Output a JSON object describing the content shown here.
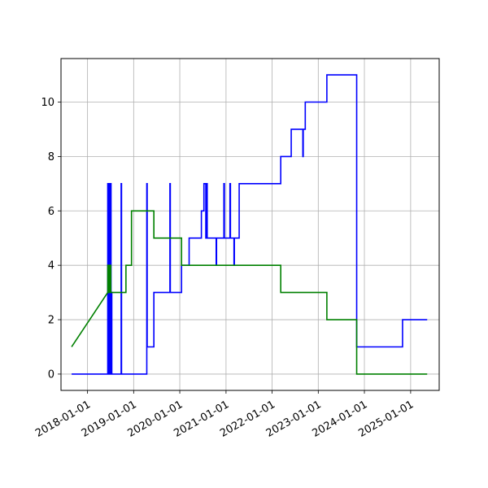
{
  "chart_data": {
    "type": "line",
    "grid": true,
    "x_type": "date",
    "xlim": [
      "2017-06-05",
      "2025-08-15"
    ],
    "ylim": [
      -0.6,
      11.6
    ],
    "x_ticks": [
      "2018-01-01",
      "2019-01-01",
      "2020-01-01",
      "2021-01-01",
      "2022-01-01",
      "2023-01-01",
      "2024-01-01",
      "2025-01-01"
    ],
    "y_ticks": [
      0,
      2,
      4,
      6,
      8,
      10
    ],
    "series": [
      {
        "color": "#0000ff",
        "step": true,
        "points": [
          [
            "2017-08-28",
            0
          ],
          [
            "2018-06-10",
            0
          ],
          [
            "2018-06-10",
            7
          ],
          [
            "2018-06-14",
            7
          ],
          [
            "2018-06-14",
            0
          ],
          [
            "2018-06-22",
            0
          ],
          [
            "2018-06-22",
            7
          ],
          [
            "2018-06-26",
            7
          ],
          [
            "2018-06-26",
            0
          ],
          [
            "2018-07-02",
            0
          ],
          [
            "2018-07-02",
            7
          ],
          [
            "2018-07-06",
            7
          ],
          [
            "2018-07-06",
            3
          ],
          [
            "2018-07-12",
            3
          ],
          [
            "2018-07-12",
            0
          ],
          [
            "2018-09-24",
            0
          ],
          [
            "2018-09-24",
            7
          ],
          [
            "2018-09-27",
            7
          ],
          [
            "2018-09-27",
            0
          ],
          [
            "2019-04-15",
            0
          ],
          [
            "2019-04-15",
            7
          ],
          [
            "2019-04-18",
            7
          ],
          [
            "2019-04-18",
            1
          ],
          [
            "2019-06-10",
            1
          ],
          [
            "2019-06-10",
            3
          ],
          [
            "2019-10-15",
            3
          ],
          [
            "2019-10-15",
            7
          ],
          [
            "2019-10-18",
            7
          ],
          [
            "2019-10-18",
            3
          ],
          [
            "2020-01-15",
            3
          ],
          [
            "2020-01-15",
            4
          ],
          [
            "2020-03-15",
            4
          ],
          [
            "2020-03-15",
            5
          ],
          [
            "2020-06-20",
            5
          ],
          [
            "2020-06-20",
            6
          ],
          [
            "2020-07-10",
            6
          ],
          [
            "2020-07-10",
            7
          ],
          [
            "2020-07-25",
            7
          ],
          [
            "2020-07-25",
            5
          ],
          [
            "2020-07-31",
            5
          ],
          [
            "2020-07-31",
            7
          ],
          [
            "2020-08-05",
            7
          ],
          [
            "2020-08-05",
            5
          ],
          [
            "2020-10-15",
            5
          ],
          [
            "2020-10-15",
            4
          ],
          [
            "2020-10-18",
            4
          ],
          [
            "2020-10-18",
            5
          ],
          [
            "2020-12-15",
            5
          ],
          [
            "2020-12-15",
            7
          ],
          [
            "2020-12-19",
            7
          ],
          [
            "2020-12-19",
            5
          ],
          [
            "2021-02-01",
            5
          ],
          [
            "2021-02-01",
            7
          ],
          [
            "2021-02-05",
            7
          ],
          [
            "2021-02-05",
            5
          ],
          [
            "2021-03-05",
            5
          ],
          [
            "2021-03-05",
            4
          ],
          [
            "2021-03-08",
            4
          ],
          [
            "2021-03-08",
            5
          ],
          [
            "2021-04-15",
            5
          ],
          [
            "2021-04-15",
            7
          ],
          [
            "2022-03-10",
            7
          ],
          [
            "2022-03-10",
            8
          ],
          [
            "2022-06-01",
            8
          ],
          [
            "2022-06-01",
            9
          ],
          [
            "2022-09-01",
            9
          ],
          [
            "2022-09-01",
            8
          ],
          [
            "2022-09-04",
            8
          ],
          [
            "2022-09-04",
            9
          ],
          [
            "2022-09-20",
            9
          ],
          [
            "2022-09-20",
            10
          ],
          [
            "2023-03-10",
            10
          ],
          [
            "2023-03-10",
            11
          ],
          [
            "2023-11-01",
            11
          ],
          [
            "2023-11-01",
            1
          ],
          [
            "2024-10-29",
            1
          ],
          [
            "2024-10-29",
            2
          ],
          [
            "2025-05-12",
            2
          ]
        ]
      },
      {
        "color": "#008000",
        "step": false,
        "points": [
          [
            "2017-08-28",
            1
          ],
          [
            "2018-06-10",
            3
          ],
          [
            "2018-06-10",
            4
          ],
          [
            "2018-06-13",
            4
          ],
          [
            "2018-06-13",
            3
          ],
          [
            "2018-06-20",
            3
          ],
          [
            "2018-06-20",
            4
          ],
          [
            "2018-06-24",
            4
          ],
          [
            "2018-06-24",
            3
          ],
          [
            "2018-07-01",
            3
          ],
          [
            "2018-07-01",
            4
          ],
          [
            "2018-07-04",
            4
          ],
          [
            "2018-07-04",
            3
          ],
          [
            "2018-11-01",
            3
          ],
          [
            "2018-11-01",
            4
          ],
          [
            "2018-12-15",
            4
          ],
          [
            "2018-12-15",
            6
          ],
          [
            "2019-06-10",
            6
          ],
          [
            "2019-06-10",
            5
          ],
          [
            "2020-01-15",
            5
          ],
          [
            "2020-01-15",
            4
          ],
          [
            "2022-03-10",
            4
          ],
          [
            "2022-03-10",
            3
          ],
          [
            "2023-03-10",
            3
          ],
          [
            "2023-03-10",
            2
          ],
          [
            "2023-11-01",
            2
          ],
          [
            "2023-11-01",
            0
          ],
          [
            "2025-05-12",
            0
          ]
        ]
      }
    ]
  }
}
